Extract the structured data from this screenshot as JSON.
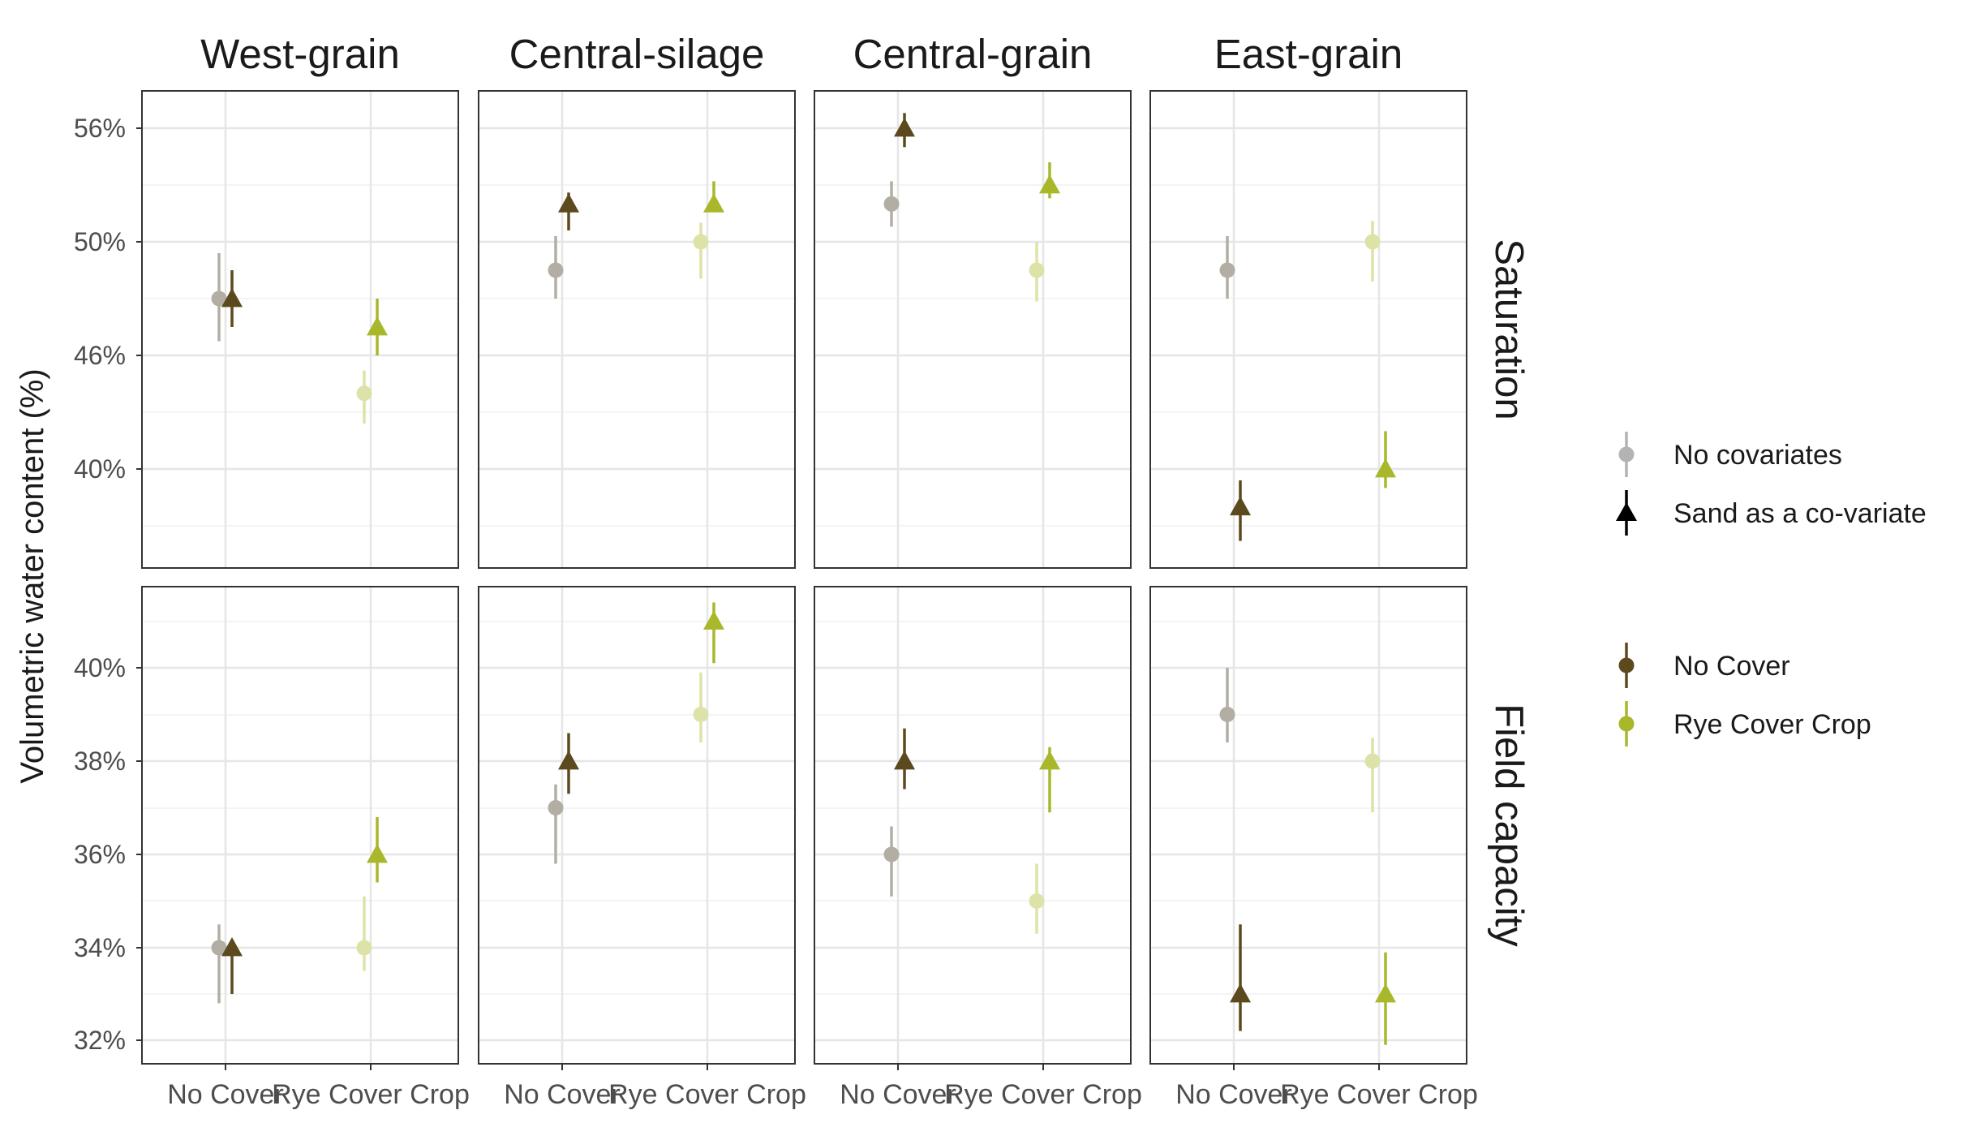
{
  "chart_data": {
    "type": "scatter",
    "ylabel": "Volumetric water content (%)",
    "columns": [
      "West-grain",
      "Central-silage",
      "Central-grain",
      "East-grain"
    ],
    "rows": [
      "Saturation",
      "Field capacity"
    ],
    "categories": [
      "No Cover",
      "Rye Cover Crop"
    ],
    "tick_labels": {
      "Saturation": [
        "40%",
        "46%",
        "50%",
        "56%"
      ],
      "Field capacity": [
        "32%",
        "34%",
        "36%",
        "38%",
        "40%"
      ]
    },
    "legend": {
      "shape": [
        {
          "label": "No covariates",
          "shape": "circle"
        },
        {
          "label": "Sand as a co-variate",
          "shape": "triangle"
        }
      ],
      "color": [
        {
          "label": "No Cover",
          "color": "#5c4a1e"
        },
        {
          "label": "Rye Cover Crop",
          "color": "#a9b82a"
        }
      ]
    },
    "colors": {
      "no_cover": "#5c4a1e",
      "rye": "#a9b82a",
      "no_covariate_no_cover": "#b3aea3",
      "no_covariate_rye": "#dde3a8"
    },
    "series": [
      {
        "column": "West-grain",
        "row": "Saturation",
        "cover": "No Cover",
        "model": "No covariates",
        "y": 48,
        "lo": 46.5,
        "hi": 49.6
      },
      {
        "column": "West-grain",
        "row": "Saturation",
        "cover": "No Cover",
        "model": "Sand as a co-variate",
        "y": 48,
        "lo": 47,
        "hi": 49
      },
      {
        "column": "West-grain",
        "row": "Saturation",
        "cover": "Rye Cover Crop",
        "model": "No covariates",
        "y": 44,
        "lo": 42.4,
        "hi": 45.2
      },
      {
        "column": "West-grain",
        "row": "Saturation",
        "cover": "Rye Cover Crop",
        "model": "Sand as a co-variate",
        "y": 47,
        "lo": 46,
        "hi": 48
      },
      {
        "column": "Central-silage",
        "row": "Saturation",
        "cover": "No Cover",
        "model": "No covariates",
        "y": 49,
        "lo": 48,
        "hi": 50.3
      },
      {
        "column": "Central-silage",
        "row": "Saturation",
        "cover": "No Cover",
        "model": "Sand as a co-variate",
        "y": 52,
        "lo": 50.6,
        "hi": 52.6
      },
      {
        "column": "Central-silage",
        "row": "Saturation",
        "cover": "Rye Cover Crop",
        "model": "No covariates",
        "y": 50,
        "lo": 48.7,
        "hi": 51
      },
      {
        "column": "Central-silage",
        "row": "Saturation",
        "cover": "Rye Cover Crop",
        "model": "Sand as a co-variate",
        "y": 52,
        "lo": 51.7,
        "hi": 53.2
      },
      {
        "column": "Central-grain",
        "row": "Saturation",
        "cover": "No Cover",
        "model": "No covariates",
        "y": 52,
        "lo": 50.8,
        "hi": 53.2
      },
      {
        "column": "Central-grain",
        "row": "Saturation",
        "cover": "No Cover",
        "model": "Sand as a co-variate",
        "y": 56,
        "lo": 55,
        "hi": 56.8
      },
      {
        "column": "Central-grain",
        "row": "Saturation",
        "cover": "Rye Cover Crop",
        "model": "No covariates",
        "y": 49,
        "lo": 47.9,
        "hi": 50
      },
      {
        "column": "Central-grain",
        "row": "Saturation",
        "cover": "Rye Cover Crop",
        "model": "Sand as a co-variate",
        "y": 53,
        "lo": 52.3,
        "hi": 54.2
      },
      {
        "column": "East-grain",
        "row": "Saturation",
        "cover": "No Cover",
        "model": "No covariates",
        "y": 49,
        "lo": 48,
        "hi": 50.3
      },
      {
        "column": "East-grain",
        "row": "Saturation",
        "cover": "No Cover",
        "model": "Sand as a co-variate",
        "y": 38,
        "lo": 36.2,
        "hi": 39.4
      },
      {
        "column": "East-grain",
        "row": "Saturation",
        "cover": "Rye Cover Crop",
        "model": "No covariates",
        "y": 50,
        "lo": 48.6,
        "hi": 51.1
      },
      {
        "column": "East-grain",
        "row": "Saturation",
        "cover": "Rye Cover Crop",
        "model": "Sand as a co-variate",
        "y": 40,
        "lo": 39,
        "hi": 42
      },
      {
        "column": "West-grain",
        "row": "Field capacity",
        "cover": "No Cover",
        "model": "No covariates",
        "y": 34,
        "lo": 32.8,
        "hi": 34.5
      },
      {
        "column": "West-grain",
        "row": "Field capacity",
        "cover": "No Cover",
        "model": "Sand as a co-variate",
        "y": 34,
        "lo": 33,
        "hi": 34
      },
      {
        "column": "West-grain",
        "row": "Field capacity",
        "cover": "Rye Cover Crop",
        "model": "No covariates",
        "y": 34,
        "lo": 33.5,
        "hi": 35.1
      },
      {
        "column": "West-grain",
        "row": "Field capacity",
        "cover": "Rye Cover Crop",
        "model": "Sand as a co-variate",
        "y": 36,
        "lo": 35.4,
        "hi": 36.8
      },
      {
        "column": "Central-silage",
        "row": "Field capacity",
        "cover": "No Cover",
        "model": "No covariates",
        "y": 37,
        "lo": 35.8,
        "hi": 37.5
      },
      {
        "column": "Central-silage",
        "row": "Field capacity",
        "cover": "No Cover",
        "model": "Sand as a co-variate",
        "y": 38,
        "lo": 37.3,
        "hi": 38.6
      },
      {
        "column": "Central-silage",
        "row": "Field capacity",
        "cover": "Rye Cover Crop",
        "model": "No covariates",
        "y": 39,
        "lo": 38.4,
        "hi": 39.9
      },
      {
        "column": "Central-silage",
        "row": "Field capacity",
        "cover": "Rye Cover Crop",
        "model": "Sand as a co-variate",
        "y": 41,
        "lo": 40.1,
        "hi": 41.4
      },
      {
        "column": "Central-grain",
        "row": "Field capacity",
        "cover": "No Cover",
        "model": "No covariates",
        "y": 36,
        "lo": 35.1,
        "hi": 36.6
      },
      {
        "column": "Central-grain",
        "row": "Field capacity",
        "cover": "No Cover",
        "model": "Sand as a co-variate",
        "y": 38,
        "lo": 37.4,
        "hi": 38.7
      },
      {
        "column": "Central-grain",
        "row": "Field capacity",
        "cover": "Rye Cover Crop",
        "model": "No covariates",
        "y": 35,
        "lo": 34.3,
        "hi": 35.8
      },
      {
        "column": "Central-grain",
        "row": "Field capacity",
        "cover": "Rye Cover Crop",
        "model": "Sand as a co-variate",
        "y": 38,
        "lo": 36.9,
        "hi": 38.3
      },
      {
        "column": "East-grain",
        "row": "Field capacity",
        "cover": "No Cover",
        "model": "No covariates",
        "y": 39,
        "lo": 38.4,
        "hi": 40
      },
      {
        "column": "East-grain",
        "row": "Field capacity",
        "cover": "No Cover",
        "model": "Sand as a co-variate",
        "y": 33,
        "lo": 32.2,
        "hi": 34.5
      },
      {
        "column": "East-grain",
        "row": "Field capacity",
        "cover": "Rye Cover Crop",
        "model": "No covariates",
        "y": 38,
        "lo": 36.9,
        "hi": 38.5
      },
      {
        "column": "East-grain",
        "row": "Field capacity",
        "cover": "Rye Cover Crop",
        "model": "Sand as a co-variate",
        "y": 33,
        "lo": 31.9,
        "hi": 33.9
      }
    ]
  }
}
